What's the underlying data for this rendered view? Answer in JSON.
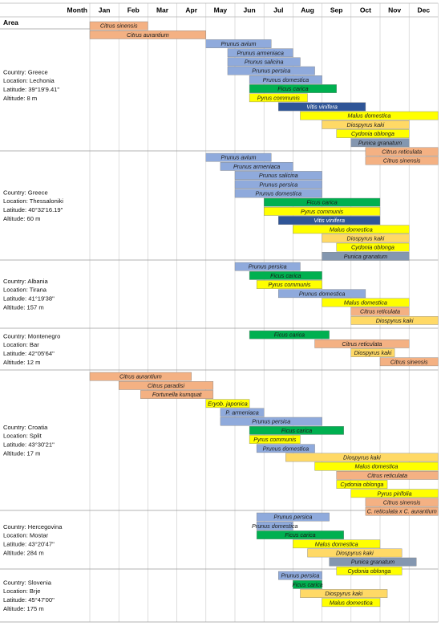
{
  "chart_data": {
    "type": "gantt",
    "header": {
      "month_label": "Month",
      "area_label": "Area"
    },
    "months": [
      "Jan",
      "Feb",
      "Mar",
      "Apr",
      "May",
      "Jun",
      "Jul",
      "Aug",
      "Sep",
      "Oct",
      "Nov",
      "Dec"
    ],
    "colors": {
      "orange": "#f4b183",
      "blue": "#8faadc",
      "green": "#00b050",
      "yellow": "#ffff00",
      "navy": "#2f5597",
      "lightorange": "#ffd966",
      "gray": "#8497b0"
    },
    "areas": [
      {
        "name": "lechonia",
        "lines": [
          "Country: Greece",
          "Location: Lechonia",
          "Latitude: 39°19'9.41\"",
          "Altitude: 8 m"
        ],
        "bars": [
          {
            "label": "Citrus sinensis",
            "start": 1,
            "end": 3,
            "color": "orange"
          },
          {
            "label": "Citrus aurantium",
            "start": 1,
            "end": 5,
            "color": "orange"
          },
          {
            "label": "Prunus avium",
            "start": 5,
            "end": 7.25,
            "color": "blue"
          },
          {
            "label": "Prunus armeniaca",
            "start": 5.75,
            "end": 8,
            "color": "blue"
          },
          {
            "label": "Prunus salicina",
            "start": 5.75,
            "end": 8.25,
            "color": "blue"
          },
          {
            "label": "Prunus persica",
            "start": 5.75,
            "end": 8.75,
            "color": "blue"
          },
          {
            "label": "Prunus domestica",
            "start": 6.5,
            "end": 9,
            "color": "blue"
          },
          {
            "label": "Ficus carica",
            "start": 6.5,
            "end": 9.5,
            "color": "green"
          },
          {
            "label": "Pyrus communis",
            "start": 6.5,
            "end": 8.5,
            "color": "yellow"
          },
          {
            "label": "Vitis vinifera",
            "start": 7.5,
            "end": 10.5,
            "color": "navy"
          },
          {
            "label": "Malus domestica",
            "start": 8.25,
            "end": 13,
            "color": "yellow"
          },
          {
            "label": "Diospyrus kaki",
            "start": 9,
            "end": 12,
            "color": "lightorange"
          },
          {
            "label": "Cydonia oblonga",
            "start": 9.5,
            "end": 12,
            "color": "yellow"
          },
          {
            "label": "Punica granatum",
            "start": 10,
            "end": 12,
            "color": "gray"
          },
          {
            "label": "Citrus reticulata",
            "start": 10.5,
            "end": 13,
            "color": "orange"
          },
          {
            "label": "Citrus sinensis",
            "start": 10.5,
            "end": 13,
            "color": "orange"
          }
        ]
      },
      {
        "name": "thessaloniki",
        "lines": [
          "Country: Greece",
          "Location: Thessaloniki",
          "Latitude: 40°32'16.19\"",
          "Altitude: 60 m"
        ],
        "bars": [
          {
            "label": "Prunus avium",
            "start": 5,
            "end": 7.25,
            "color": "blue"
          },
          {
            "label": "Prunus armeniaca",
            "start": 5.5,
            "end": 8,
            "color": "blue"
          },
          {
            "label": "Prunus salicina",
            "start": 6,
            "end": 9,
            "color": "blue"
          },
          {
            "label": "Prunus persica",
            "start": 6,
            "end": 9,
            "color": "blue"
          },
          {
            "label": "Prunus domestica",
            "start": 6,
            "end": 9,
            "color": "blue"
          },
          {
            "label": "Ficus carica",
            "start": 7,
            "end": 11,
            "color": "green"
          },
          {
            "label": "Pyrus communis",
            "start": 7,
            "end": 11,
            "color": "yellow"
          },
          {
            "label": "Vitis vinifera",
            "start": 7.5,
            "end": 11,
            "color": "navy"
          },
          {
            "label": "Malus domestica",
            "start": 8,
            "end": 12,
            "color": "yellow"
          },
          {
            "label": "Diospyrus kaki",
            "start": 9,
            "end": 12,
            "color": "lightorange"
          },
          {
            "label": "Cydonia oblonga",
            "start": 9.5,
            "end": 12,
            "color": "yellow"
          },
          {
            "label": "Punica granatum",
            "start": 9,
            "end": 12,
            "color": "gray"
          }
        ]
      },
      {
        "name": "tirana",
        "lines": [
          "Country: Albania",
          "Location: Tirana",
          "Latitude: 41°19'38\"",
          "Altitude: 157 m"
        ],
        "bars": [
          {
            "label": "Prunus persica",
            "start": 6,
            "end": 8.25,
            "color": "blue"
          },
          {
            "label": "Ficus carica",
            "start": 6.5,
            "end": 9,
            "color": "green"
          },
          {
            "label": "Pyrus communis",
            "start": 6.75,
            "end": 9,
            "color": "yellow"
          },
          {
            "label": "Prunus domestica",
            "start": 7.5,
            "end": 10.5,
            "color": "blue"
          },
          {
            "label": "Malus domestica",
            "start": 9,
            "end": 12,
            "color": "yellow"
          },
          {
            "label": "Citrus reticulata",
            "start": 10,
            "end": 12,
            "color": "orange"
          },
          {
            "label": "Diospyrus kaki",
            "start": 10,
            "end": 13,
            "color": "lightorange"
          }
        ]
      },
      {
        "name": "bar",
        "lines": [
          "Country: Montenegro",
          "Location: Bar",
          "Latitude: 42°05'64\"",
          "Altitude: 12 m"
        ],
        "bars": [
          {
            "label": "Ficus carica",
            "start": 6.5,
            "end": 9.25,
            "color": "green"
          },
          {
            "label": "Citrus reticulata",
            "start": 8.75,
            "end": 12,
            "color": "orange"
          },
          {
            "label": "Diospyrus kaki",
            "start": 10,
            "end": 11.5,
            "color": "lightorange"
          },
          {
            "label": "Citrus sinensis",
            "start": 11,
            "end": 13,
            "color": "orange"
          }
        ]
      },
      {
        "name": "split",
        "lines": [
          "Country: Croatia",
          "Location: Split",
          "Latitude: 43°30'21\"",
          "Altitude: 17 m"
        ],
        "bars": [
          {
            "label": "Citrus aurantium",
            "start": 1,
            "end": 4.5,
            "color": "orange"
          },
          {
            "label": "Citrus paradisi",
            "start": 2,
            "end": 5.25,
            "color": "orange"
          },
          {
            "label": "Fortunella kumquat",
            "start": 2.75,
            "end": 5.25,
            "color": "orange"
          },
          {
            "label": "Eryob. japonica",
            "start": 5,
            "end": 6.5,
            "color": "yellow"
          },
          {
            "label": "P. armeniaca",
            "start": 5.5,
            "end": 7,
            "color": "blue"
          },
          {
            "label": "Prunus persica",
            "start": 5.5,
            "end": 9,
            "color": "blue"
          },
          {
            "label": "Ficus carica",
            "start": 6.5,
            "end": 9.75,
            "color": "green"
          },
          {
            "label": "Pyrus communis",
            "start": 6.5,
            "end": 8.25,
            "color": "yellow"
          },
          {
            "label": "Prunus domestica",
            "start": 6.75,
            "end": 8.75,
            "color": "blue"
          },
          {
            "label": "Diospyrus kaki",
            "start": 7.75,
            "end": 13,
            "color": "lightorange"
          },
          {
            "label": "Malus domestica",
            "start": 8.75,
            "end": 13,
            "color": "yellow"
          },
          {
            "label": "Citrus reticulata",
            "start": 9.5,
            "end": 13,
            "color": "orange"
          },
          {
            "label": "Cydonia oblonga",
            "start": 9.5,
            "end": 11.25,
            "color": "yellow"
          },
          {
            "label": "Pyrus pirifolia",
            "start": 10,
            "end": 13,
            "color": "yellow"
          },
          {
            "label": "Citrus sinensis",
            "start": 10.5,
            "end": 13,
            "color": "orange"
          },
          {
            "label": "C. reticulata x C. aurantium",
            "start": 10.5,
            "end": 13,
            "color": "orange"
          }
        ]
      },
      {
        "name": "mostar",
        "lines": [
          "Country: Hercegovina",
          "Location: Mostar",
          "Latitude: 43°20'47\"",
          "Altitude: 284 m"
        ],
        "bars": [
          {
            "label": "Prunus persica",
            "start": 6.75,
            "end": 9.25,
            "color": "blue"
          },
          {
            "label": "Prunus domestica",
            "start": 6.75,
            "end": 8,
            "color": "blue"
          },
          {
            "label": "Ficus carica",
            "start": 6.75,
            "end": 9.75,
            "color": "green"
          },
          {
            "label": "Malus domestica",
            "start": 8,
            "end": 11,
            "color": "yellow"
          },
          {
            "label": "Diospyrus kaki",
            "start": 8.5,
            "end": 11.75,
            "color": "lightorange"
          },
          {
            "label": "Punica granatum",
            "start": 9.25,
            "end": 12.25,
            "color": "gray"
          },
          {
            "label": "Cydonia oblonga",
            "start": 9.5,
            "end": 11.75,
            "color": "yellow"
          }
        ]
      },
      {
        "name": "brje",
        "lines": [
          "Country: Slovenia",
          "Location: Brje",
          "Latitude: 45°47'00\"",
          "Altitude: 175 m"
        ],
        "bars": [
          {
            "label": "Prunus persica",
            "start": 7.5,
            "end": 9,
            "color": "blue"
          },
          {
            "label": "Ficus carica",
            "start": 8,
            "end": 9,
            "color": "green"
          },
          {
            "label": "Diospyrus kaki",
            "start": 8.25,
            "end": 11.25,
            "color": "lightorange"
          },
          {
            "label": "Malus domestica",
            "start": 9,
            "end": 11,
            "color": "yellow"
          }
        ]
      }
    ]
  }
}
